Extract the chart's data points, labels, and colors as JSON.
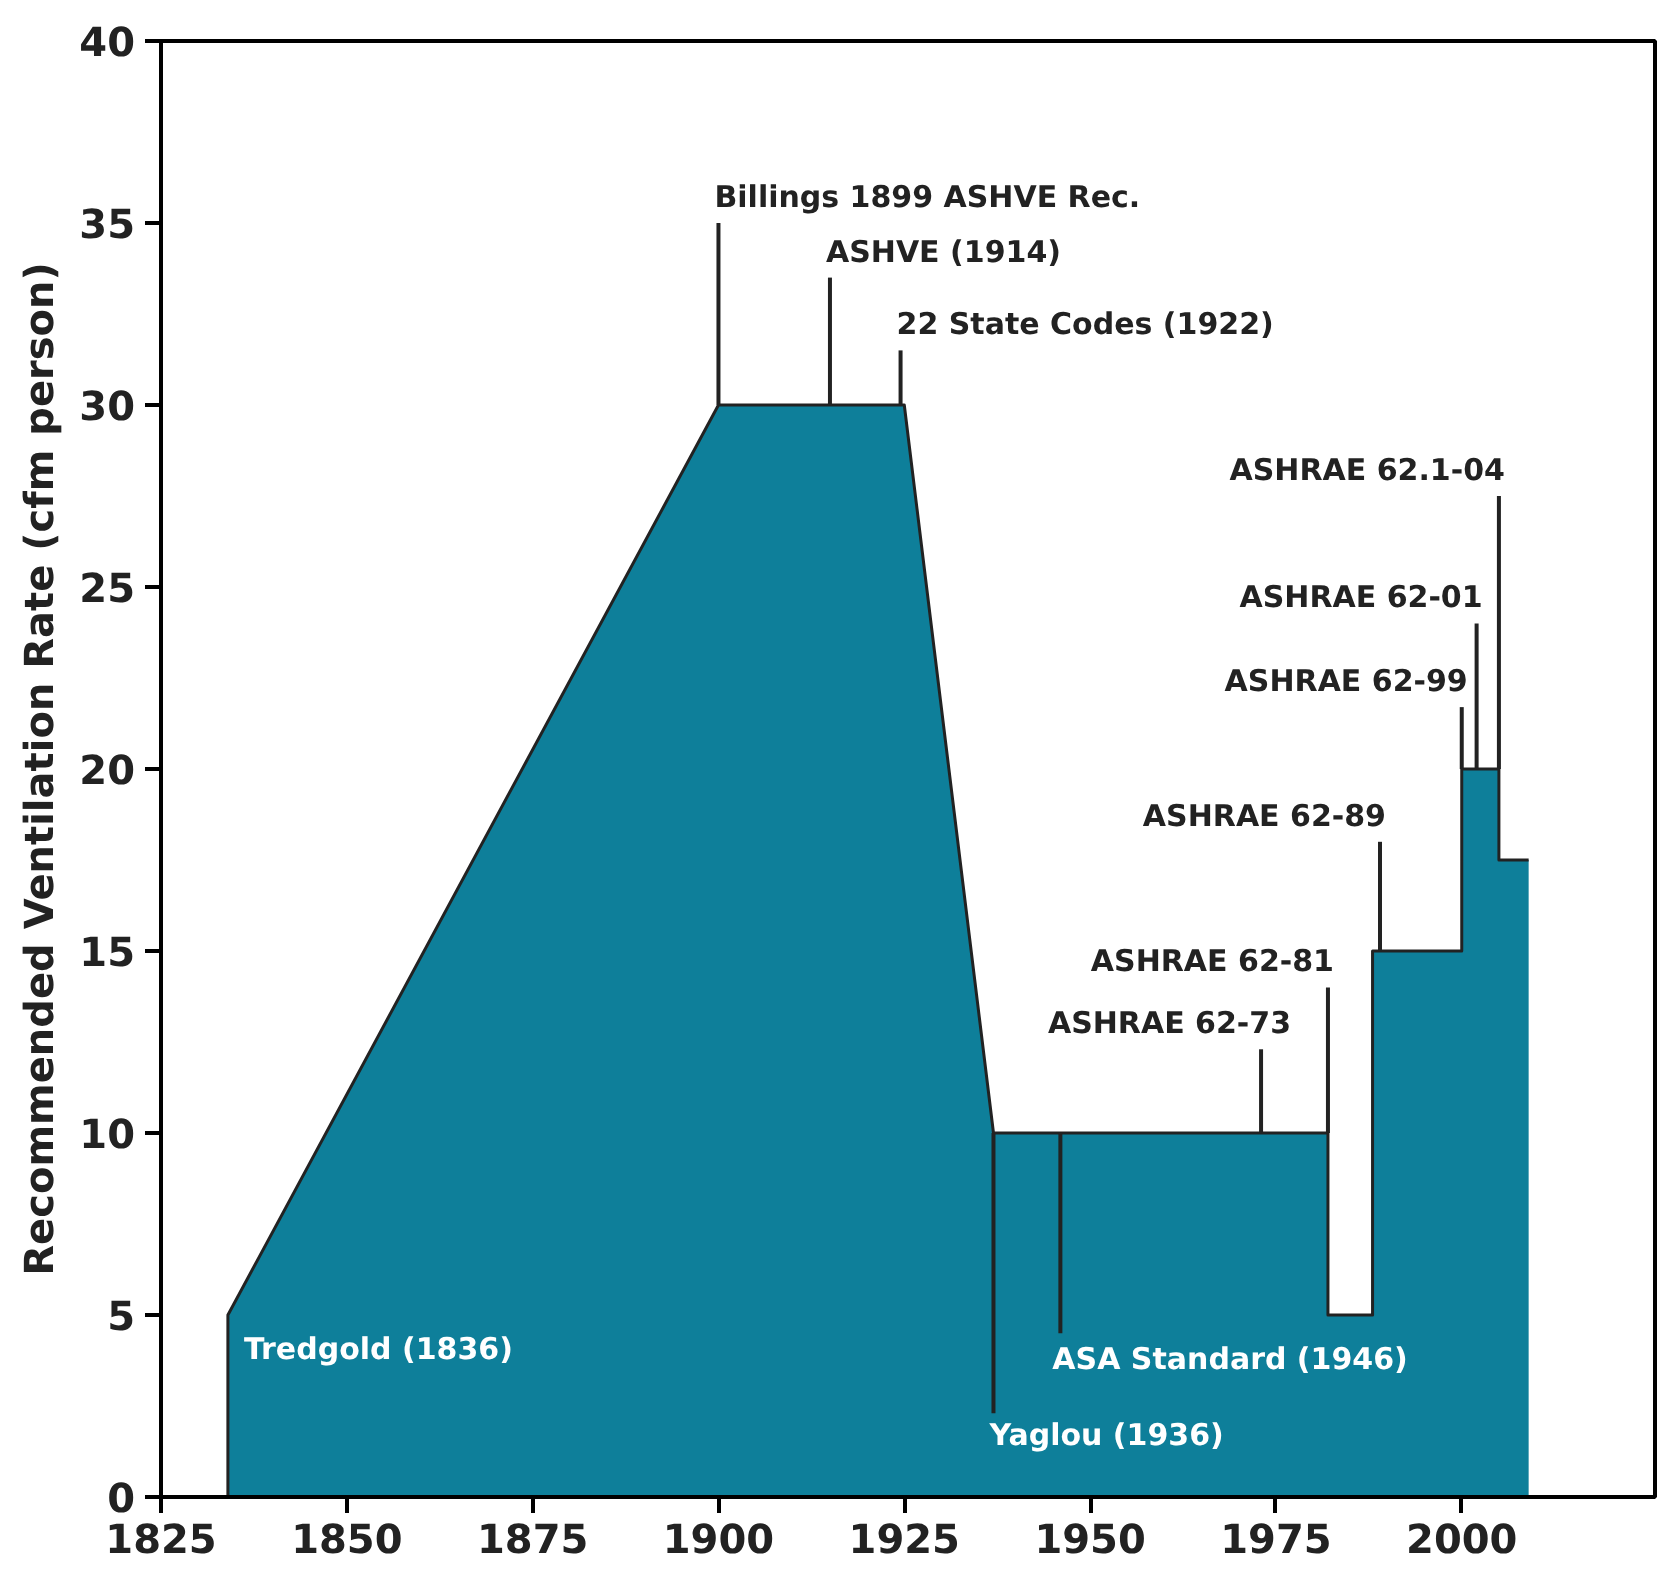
{
  "chart_data": {
    "type": "area",
    "ylabel": "Recommended Ventilation Rate (cfm person)",
    "series": [
      {
        "color": "#0e7f9a",
        "x": [
          1834,
          1900,
          1925,
          1937,
          1982,
          1982,
          1988,
          1988,
          2000,
          2000,
          2005,
          2005,
          2009
        ],
        "values": [
          5,
          30,
          30,
          10,
          10,
          5,
          5,
          15,
          15,
          20,
          20,
          17.5,
          17.5
        ]
      }
    ],
    "xlim": [
      1825,
      2026
    ],
    "ylim": [
      0,
      40
    ],
    "xticks": [
      1825,
      1850,
      1875,
      1900,
      1925,
      1950,
      1975,
      2000
    ],
    "yticks": [
      0,
      5,
      10,
      15,
      20,
      25,
      30,
      35,
      40
    ],
    "grid": false,
    "annotations": [
      {
        "text": "Tredgold (1836)",
        "x": 1834,
        "y": 5
      },
      {
        "text": "Billings 1899 ASHVE Rec.",
        "x": 1900,
        "y": 30
      },
      {
        "text": "ASHVE (1914)",
        "x": 1915,
        "y": 30
      },
      {
        "text": "22 State Codes (1922)",
        "x": 1924.5,
        "y": 30
      },
      {
        "text": "Yaglou (1936)",
        "x": 1937,
        "y": 10
      },
      {
        "text": "ASA Standard (1946)",
        "x": 1946,
        "y": 10
      },
      {
        "text": "ASHRAE 62-73",
        "x": 1973,
        "y": 10
      },
      {
        "text": "ASHRAE 62-81",
        "x": 1982,
        "y": 10
      },
      {
        "text": "ASHRAE 62-89",
        "x": 1989,
        "y": 15
      },
      {
        "text": "ASHRAE 62-99",
        "x": 2000,
        "y": 20
      },
      {
        "text": "ASHRAE 62-01",
        "x": 2002,
        "y": 20
      },
      {
        "text": "ASHRAE 62.1-04",
        "x": 2005,
        "y": 20
      }
    ]
  }
}
